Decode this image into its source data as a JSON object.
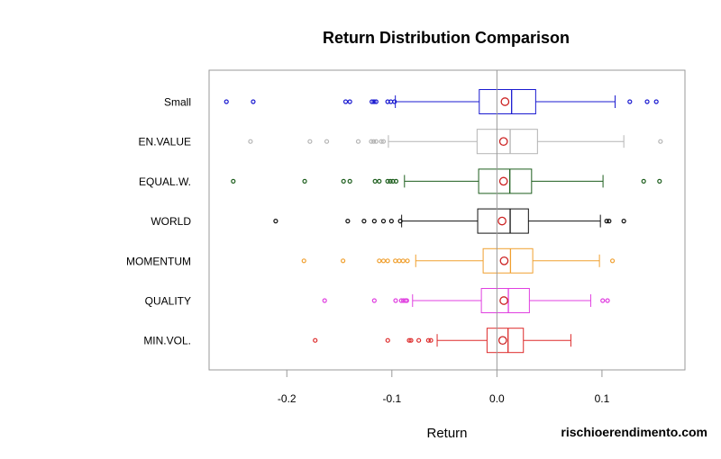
{
  "chart_data": {
    "type": "boxplot",
    "orientation": "horizontal",
    "title": "Return Distribution Comparison",
    "xlabel": "Return",
    "ylabel": "",
    "xlim": [
      -0.274,
      0.179
    ],
    "xticks": [
      -0.2,
      -0.1,
      0.0,
      0.1
    ],
    "xtick_labels": [
      "-0.2",
      "-0.1",
      "0.0",
      "0.1"
    ],
    "reference_line": 0.0,
    "reference_line_color": "#999999",
    "mean_marker_color": "#cc2222",
    "grid": false,
    "series": [
      {
        "name": "Small",
        "color": "#1a1ad0",
        "whisker_low": -0.0967,
        "q1": -0.0168,
        "median": 0.014,
        "q3": 0.0369,
        "whisker_high": 0.1125,
        "mean": 0.0077,
        "outliers": [
          -0.2575,
          -0.232,
          -0.144,
          -0.14,
          -0.119,
          -0.117,
          -0.115,
          -0.104,
          -0.101,
          -0.0975,
          0.1265,
          0.143,
          0.1517
        ]
      },
      {
        "name": "EN.VALUE",
        "color": "#b4b4b4",
        "whisker_low": -0.1033,
        "q1": -0.0189,
        "median": 0.0126,
        "q3": 0.0386,
        "whisker_high": 0.1208,
        "mean": 0.0063,
        "outliers": [
          -0.2346,
          -0.178,
          -0.162,
          -0.132,
          -0.1196,
          -0.1173,
          -0.115,
          -0.11,
          -0.108,
          0.1557
        ]
      },
      {
        "name": "EQUAL.W.",
        "color": "#1d5e1d",
        "whisker_low": -0.088,
        "q1": -0.0174,
        "median": 0.0123,
        "q3": 0.033,
        "whisker_high": 0.101,
        "mean": 0.0063,
        "outliers": [
          -0.251,
          -0.183,
          -0.146,
          -0.14,
          -0.116,
          -0.112,
          -0.104,
          -0.1015,
          -0.099,
          -0.096,
          0.1397,
          0.1548
        ]
      },
      {
        "name": "WORLD",
        "color": "#111111",
        "whisker_low": -0.0907,
        "q1": -0.0183,
        "median": 0.0126,
        "q3": 0.03,
        "whisker_high": 0.0985,
        "mean": 0.0049,
        "outliers": [
          -0.2106,
          -0.142,
          -0.1265,
          -0.1167,
          -0.108,
          -0.1004,
          -0.092,
          0.1045,
          0.1068,
          0.1208
        ]
      },
      {
        "name": "MOMENTUM",
        "color": "#f0a030",
        "whisker_low": -0.0773,
        "q1": -0.0131,
        "median": 0.0129,
        "q3": 0.0341,
        "whisker_high": 0.0976,
        "mean": 0.0069,
        "outliers": [
          -0.1837,
          -0.1465,
          -0.112,
          -0.108,
          -0.104,
          -0.0967,
          -0.093,
          -0.0893,
          -0.0852,
          0.11
        ]
      },
      {
        "name": "QUALITY",
        "color": "#e040e0",
        "whisker_low": -0.0803,
        "q1": -0.0148,
        "median": 0.0109,
        "q3": 0.0309,
        "whisker_high": 0.0893,
        "mean": 0.0066,
        "outliers": [
          -0.164,
          -0.1167,
          -0.0964,
          -0.091,
          -0.089,
          -0.087,
          -0.0858,
          0.1007,
          0.1053
        ]
      },
      {
        "name": "MIN.VOL.",
        "color": "#dd2a2a",
        "whisker_low": -0.0569,
        "q1": -0.0094,
        "median": 0.0106,
        "q3": 0.0252,
        "whisker_high": 0.0704,
        "mean": 0.0055,
        "outliers": [
          -0.173,
          -0.1039,
          -0.0835,
          -0.0818,
          -0.0744,
          -0.0652,
          -0.0629
        ]
      }
    ]
  },
  "watermark": "rischioerendimento.com"
}
